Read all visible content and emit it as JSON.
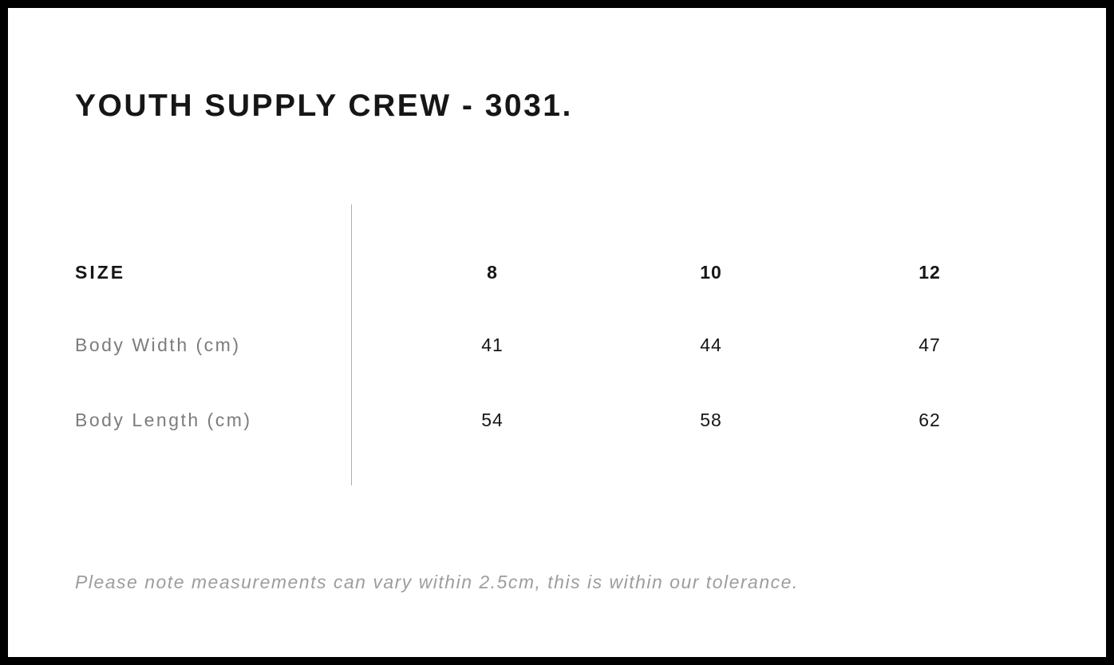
{
  "page": {
    "title": "YOUTH SUPPLY CREW - 3031."
  },
  "size_chart": {
    "header": {
      "label": "SIZE",
      "columns": [
        "8",
        "10",
        "12"
      ]
    },
    "rows": [
      {
        "label": "Body Width (cm)",
        "values": [
          "41",
          "44",
          "47"
        ]
      },
      {
        "label": "Body Length (cm)",
        "values": [
          "54",
          "58",
          "62"
        ]
      }
    ]
  },
  "note": "Please note measurements can vary within 2.5cm, this is within our tolerance.",
  "colors": {
    "frame": "#000000",
    "background": "#ffffff",
    "heading_text": "#161616",
    "label_text": "#7c7c7c",
    "value_text": "#161616",
    "divider": "#aeaeae",
    "note_text": "#9d9d9d"
  }
}
